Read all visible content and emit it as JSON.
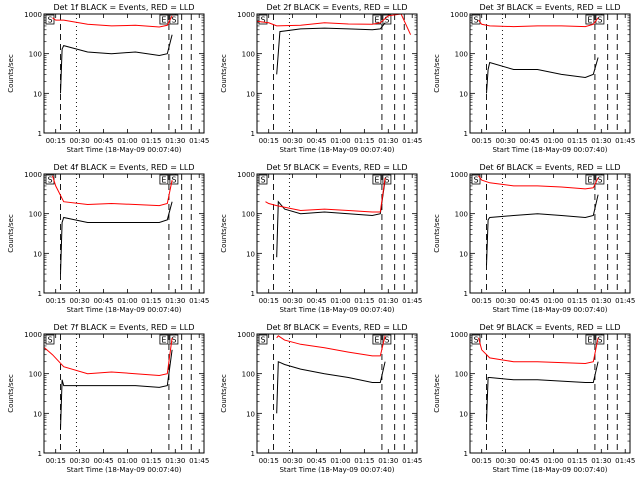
{
  "chart_data": [
    {
      "type": "line",
      "title": "Det 1f BLACK = Events, RED = LLD",
      "xlabel": "Start Time (18-May-09 00:07:40)",
      "ylabel": "Counts/sec",
      "yscale": "log",
      "ylim": [
        1,
        1000
      ],
      "x_ticks": [
        "00:15",
        "00:30",
        "00:45",
        "01:00",
        "01:15",
        "01:30",
        "01:45"
      ],
      "y_ticks": [
        "1",
        "10",
        "100",
        "1000"
      ],
      "markers": [
        "S",
        "E",
        "S"
      ],
      "series": [
        {
          "color": "#000000",
          "x": [
            "00:18",
            "00:19",
            "00:20",
            "00:35",
            "00:50",
            "01:05",
            "01:20",
            "01:25",
            "01:28"
          ],
          "y": [
            10,
            130,
            160,
            110,
            100,
            110,
            90,
            100,
            300
          ]
        },
        {
          "color": "#ff0000",
          "x": [
            "00:13",
            "00:15",
            "00:20",
            "00:35",
            "00:50",
            "01:05",
            "01:20",
            "01:25",
            "01:28"
          ],
          "y": [
            800,
            700,
            700,
            550,
            500,
            520,
            470,
            520,
            900
          ]
        }
      ]
    },
    {
      "type": "line",
      "title": "Det 2f BLACK = Events, RED = LLD",
      "xlabel": "Start Time (18-May-09 00:07:40)",
      "ylabel": "Counts/sec",
      "yscale": "log",
      "ylim": [
        1,
        1000
      ],
      "x_ticks": [
        "00:15",
        "00:30",
        "00:45",
        "01:00",
        "01:15",
        "01:30",
        "01:45"
      ],
      "y_ticks": [
        "1",
        "10",
        "100",
        "1000"
      ],
      "markers": [
        "S",
        "E",
        "S"
      ],
      "series": [
        {
          "color": "#000000",
          "x": [
            "00:20",
            "00:22",
            "00:35",
            "00:50",
            "01:05",
            "01:20",
            "01:25",
            "01:28"
          ],
          "y": [
            30,
            360,
            420,
            440,
            420,
            400,
            420,
            600
          ]
        },
        {
          "color": "#ff0000",
          "x": [
            "00:08",
            "00:15",
            "00:20",
            "00:35",
            "00:50",
            "01:05",
            "01:20",
            "01:25",
            "01:30",
            "01:38",
            "01:44"
          ],
          "y": [
            650,
            600,
            500,
            520,
            600,
            560,
            550,
            600,
            900,
            1000,
            300
          ]
        }
      ]
    },
    {
      "type": "line",
      "title": "Det 3f BLACK = Events, RED = LLD",
      "xlabel": "Start Time (18-May-09 00:07:40)",
      "ylabel": "Counts/sec",
      "yscale": "log",
      "ylim": [
        1,
        1000
      ],
      "x_ticks": [
        "00:15",
        "00:30",
        "00:45",
        "01:00",
        "01:15",
        "01:30",
        "01:45"
      ],
      "y_ticks": [
        "1",
        "10",
        "100",
        "1000"
      ],
      "markers": [
        "S",
        "E",
        "S"
      ],
      "series": [
        {
          "color": "#000000",
          "x": [
            "00:18",
            "00:19",
            "00:20",
            "00:35",
            "00:50",
            "01:05",
            "01:20",
            "01:25",
            "01:28"
          ],
          "y": [
            10,
            40,
            60,
            40,
            40,
            30,
            25,
            30,
            80
          ]
        },
        {
          "color": "#ff0000",
          "x": [
            "00:13",
            "00:15",
            "00:20",
            "00:35",
            "00:50",
            "01:05",
            "01:20",
            "01:25",
            "01:28"
          ],
          "y": [
            700,
            550,
            500,
            480,
            500,
            500,
            480,
            550,
            800
          ]
        }
      ]
    },
    {
      "type": "line",
      "title": "Det 4f BLACK = Events, RED = LLD",
      "xlabel": "Start Time (18-May-09 00:07:40)",
      "ylabel": "Counts/sec",
      "yscale": "log",
      "ylim": [
        1,
        1000
      ],
      "x_ticks": [
        "00:15",
        "00:30",
        "00:45",
        "01:00",
        "01:15",
        "01:30",
        "01:45"
      ],
      "y_ticks": [
        "1",
        "10",
        "100",
        "1000"
      ],
      "markers": [
        "S",
        "E",
        "S"
      ],
      "series": [
        {
          "color": "#000000",
          "x": [
            "00:18",
            "00:19",
            "00:20",
            "00:35",
            "00:50",
            "01:05",
            "01:20",
            "01:25",
            "01:28"
          ],
          "y": [
            3,
            60,
            80,
            60,
            60,
            60,
            60,
            70,
            200
          ]
        },
        {
          "color": "#ff0000",
          "x": [
            "00:13",
            "00:15",
            "00:20",
            "00:35",
            "00:50",
            "01:05",
            "01:20",
            "01:25",
            "01:28"
          ],
          "y": [
            900,
            500,
            200,
            170,
            180,
            170,
            160,
            180,
            700
          ]
        }
      ]
    },
    {
      "type": "line",
      "title": "Det 5f BLACK = Events, RED = LLD",
      "xlabel": "Start Time (18-May-09 00:07:40)",
      "ylabel": "Counts/sec",
      "yscale": "log",
      "ylim": [
        1,
        1000
      ],
      "x_ticks": [
        "00:15",
        "00:30",
        "00:45",
        "01:00",
        "01:15",
        "01:30",
        "01:45"
      ],
      "y_ticks": [
        "1",
        "10",
        "100",
        "1000"
      ],
      "markers": [
        "S",
        "E",
        "S"
      ],
      "series": [
        {
          "color": "#000000",
          "x": [
            "00:20",
            "00:21",
            "00:25",
            "00:35",
            "00:50",
            "01:05",
            "01:20",
            "01:25",
            "01:28"
          ],
          "y": [
            8,
            200,
            130,
            100,
            110,
            100,
            90,
            100,
            700
          ]
        },
        {
          "color": "#ff0000",
          "x": [
            "00:13",
            "00:15",
            "00:20",
            "00:35",
            "00:50",
            "01:05",
            "01:20",
            "01:25",
            "01:28"
          ],
          "y": [
            200,
            180,
            160,
            120,
            130,
            120,
            110,
            110,
            800
          ]
        }
      ]
    },
    {
      "type": "line",
      "title": "Det 6f BLACK = Events, RED = LLD",
      "xlabel": "Start Time (18-May-09 00:07:40)",
      "ylabel": "Counts/sec",
      "yscale": "log",
      "ylim": [
        1,
        1000
      ],
      "x_ticks": [
        "00:15",
        "00:30",
        "00:45",
        "01:00",
        "01:15",
        "01:30",
        "01:45"
      ],
      "y_ticks": [
        "1",
        "10",
        "100",
        "1000"
      ],
      "markers": [
        "S",
        "E",
        "S"
      ],
      "series": [
        {
          "color": "#000000",
          "x": [
            "00:18",
            "00:19",
            "00:20",
            "00:35",
            "00:50",
            "01:05",
            "01:20",
            "01:25",
            "01:28"
          ],
          "y": [
            5,
            70,
            80,
            90,
            100,
            90,
            80,
            90,
            300
          ]
        },
        {
          "color": "#ff0000",
          "x": [
            "00:13",
            "00:15",
            "00:20",
            "00:35",
            "00:50",
            "01:05",
            "01:20",
            "01:25",
            "01:28"
          ],
          "y": [
            900,
            700,
            600,
            500,
            500,
            470,
            420,
            450,
            800
          ]
        }
      ]
    },
    {
      "type": "line",
      "title": "Det 7f BLACK = Events, RED = LLD",
      "xlabel": "Start Time (18-May-09 00:07:40)",
      "ylabel": "Counts/sec",
      "yscale": "log",
      "ylim": [
        1,
        1000
      ],
      "x_ticks": [
        "00:15",
        "00:30",
        "00:45",
        "01:00",
        "01:15",
        "01:30",
        "01:45"
      ],
      "y_ticks": [
        "1",
        "10",
        "100",
        "1000"
      ],
      "markers": [
        "S",
        "E",
        "S"
      ],
      "series": [
        {
          "color": "#000000",
          "x": [
            "00:18",
            "00:19",
            "00:20",
            "00:35",
            "00:50",
            "01:05",
            "01:20",
            "01:25",
            "01:28"
          ],
          "y": [
            4,
            70,
            50,
            50,
            50,
            50,
            45,
            50,
            400
          ]
        },
        {
          "color": "#ff0000",
          "x": [
            "00:08",
            "00:13",
            "00:20",
            "00:35",
            "00:50",
            "01:05",
            "01:20",
            "01:25",
            "01:28"
          ],
          "y": [
            450,
            300,
            150,
            100,
            110,
            100,
            90,
            100,
            800
          ]
        }
      ]
    },
    {
      "type": "line",
      "title": "Det 8f BLACK = Events, RED = LLD",
      "xlabel": "Start Time (18-May-09 00:07:40)",
      "ylabel": "Counts/sec",
      "yscale": "log",
      "ylim": [
        1,
        1000
      ],
      "x_ticks": [
        "00:15",
        "00:30",
        "00:45",
        "01:00",
        "01:15",
        "01:30",
        "01:45"
      ],
      "y_ticks": [
        "1",
        "10",
        "100",
        "1000"
      ],
      "markers": [
        "S",
        "E",
        "S"
      ],
      "series": [
        {
          "color": "#000000",
          "x": [
            "00:20",
            "00:21",
            "00:25",
            "00:35",
            "00:50",
            "01:05",
            "01:20",
            "01:25",
            "01:28"
          ],
          "y": [
            10,
            200,
            170,
            130,
            100,
            80,
            60,
            60,
            200
          ]
        },
        {
          "color": "#ff0000",
          "x": [
            "00:20",
            "00:21",
            "00:25",
            "00:35",
            "00:50",
            "01:05",
            "01:20",
            "01:25",
            "01:28"
          ],
          "y": [
            800,
            900,
            700,
            550,
            450,
            350,
            280,
            280,
            900
          ]
        }
      ]
    },
    {
      "type": "line",
      "title": "Det 9f BLACK = Events, RED = LLD",
      "xlabel": "Start Time (18-May-09 00:07:40)",
      "ylabel": "Counts/sec",
      "yscale": "log",
      "ylim": [
        1,
        1000
      ],
      "x_ticks": [
        "00:15",
        "00:30",
        "00:45",
        "01:00",
        "01:15",
        "01:30",
        "01:45"
      ],
      "y_ticks": [
        "1",
        "10",
        "100",
        "1000"
      ],
      "markers": [
        "S",
        "E",
        "S"
      ],
      "series": [
        {
          "color": "#000000",
          "x": [
            "00:18",
            "00:19",
            "00:20",
            "00:35",
            "00:50",
            "01:05",
            "01:20",
            "01:25",
            "01:28"
          ],
          "y": [
            6,
            80,
            80,
            70,
            70,
            65,
            60,
            60,
            200
          ]
        },
        {
          "color": "#ff0000",
          "x": [
            "00:13",
            "00:15",
            "00:20",
            "00:35",
            "00:50",
            "01:05",
            "01:20",
            "01:25",
            "01:28"
          ],
          "y": [
            800,
            400,
            250,
            200,
            200,
            190,
            180,
            200,
            800
          ]
        }
      ]
    }
  ]
}
